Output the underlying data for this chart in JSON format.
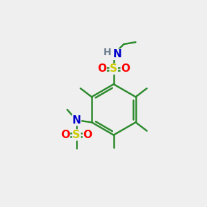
{
  "bg_color": "#efefef",
  "atom_colors": {
    "C": "#2e8b2e",
    "H": "#708090",
    "N": "#0000cc",
    "O": "#ff0000",
    "S": "#cccc00"
  },
  "bond_color": "#2e8b2e",
  "figsize": [
    3.0,
    3.0
  ],
  "dpi": 100
}
